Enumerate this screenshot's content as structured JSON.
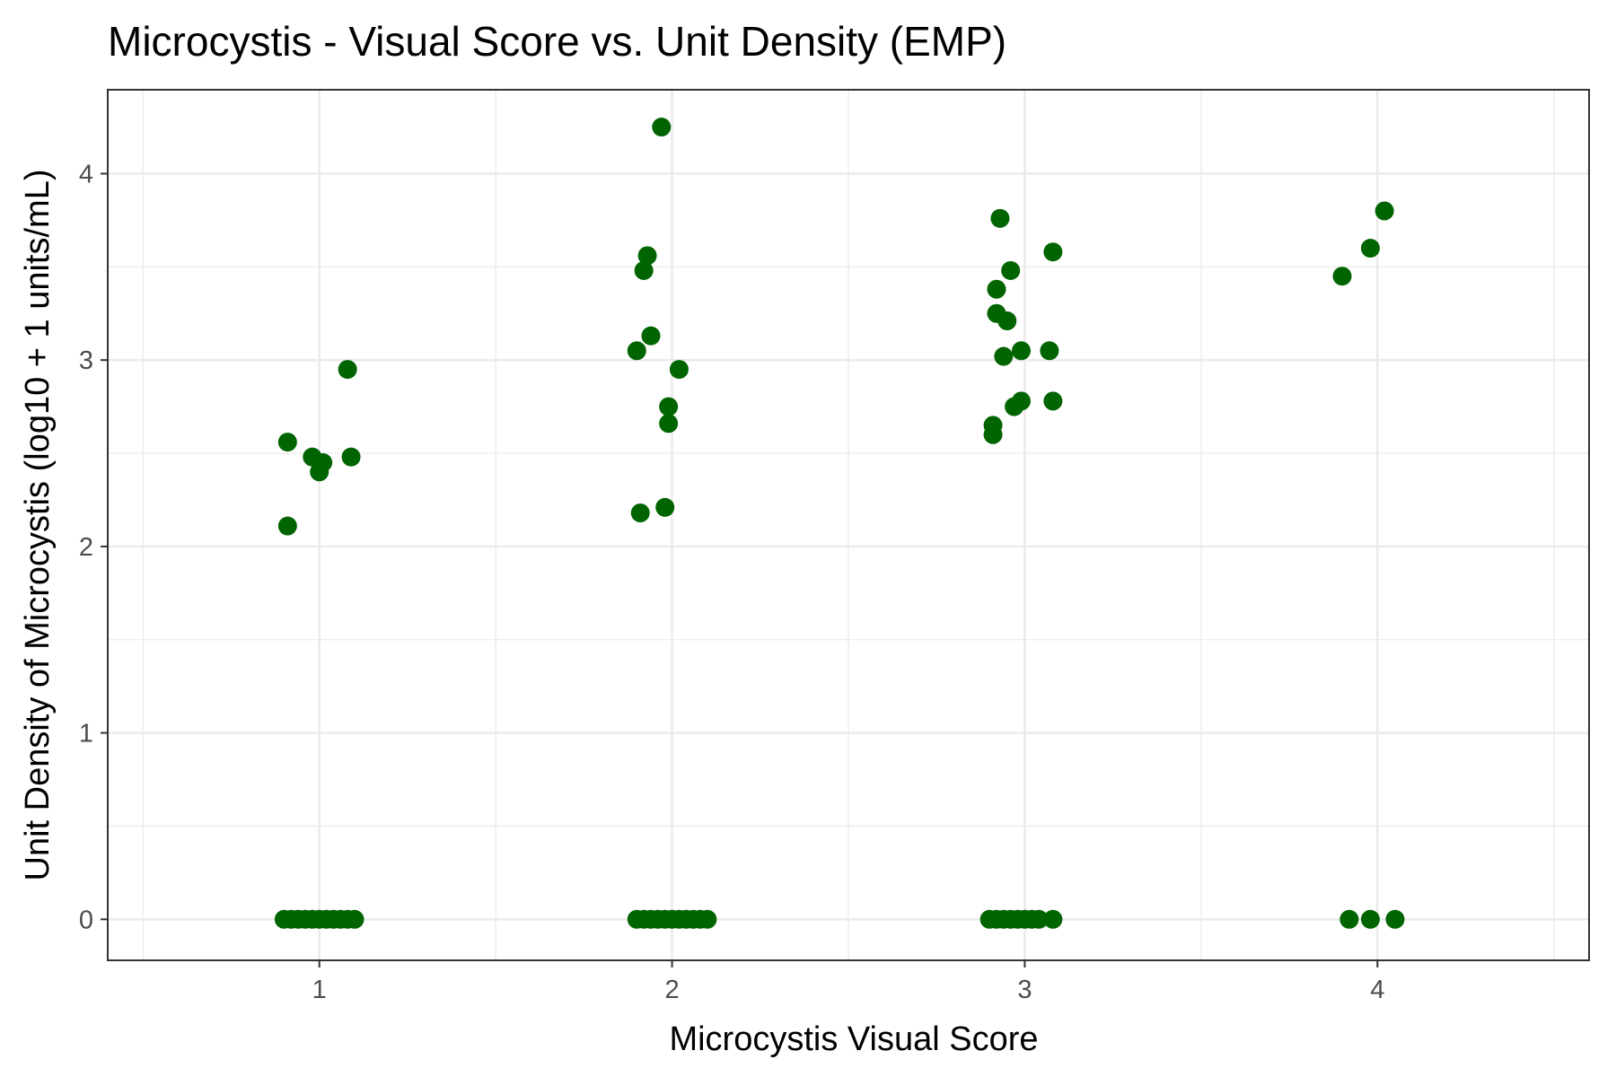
{
  "chart_data": {
    "type": "scatter",
    "title": "Microcystis - Visual Score vs. Unit Density (EMP)",
    "xlabel": "Microcystis Visual Score",
    "ylabel": "Unit Density of Microcystis (log10 + 1 units/mL)",
    "xlim": [
      0.4,
      4.6
    ],
    "ylim": [
      -0.22,
      4.45
    ],
    "x_ticks": [
      1,
      2,
      3,
      4
    ],
    "x_tick_labels": [
      "1",
      "2",
      "3",
      "4"
    ],
    "y_ticks": [
      0,
      1,
      2,
      3,
      4
    ],
    "y_tick_labels": [
      "0",
      "1",
      "2",
      "3",
      "4"
    ],
    "grid": true,
    "legend": "none",
    "point_color": "#006400",
    "series": [
      {
        "points": [
          {
            "x": 0.91,
            "y": 2.11
          },
          {
            "x": 0.91,
            "y": 2.56
          },
          {
            "x": 0.98,
            "y": 2.48
          },
          {
            "x": 1.0,
            "y": 2.4
          },
          {
            "x": 1.01,
            "y": 2.45
          },
          {
            "x": 1.09,
            "y": 2.48
          },
          {
            "x": 1.08,
            "y": 2.95
          },
          {
            "x": 0.9,
            "y": 0
          },
          {
            "x": 0.92,
            "y": 0
          },
          {
            "x": 0.94,
            "y": 0
          },
          {
            "x": 0.96,
            "y": 0
          },
          {
            "x": 0.98,
            "y": 0
          },
          {
            "x": 1.0,
            "y": 0
          },
          {
            "x": 1.02,
            "y": 0
          },
          {
            "x": 1.04,
            "y": 0
          },
          {
            "x": 1.06,
            "y": 0
          },
          {
            "x": 1.08,
            "y": 0
          },
          {
            "x": 1.1,
            "y": 0
          },
          {
            "x": 1.97,
            "y": 4.25
          },
          {
            "x": 1.93,
            "y": 3.56
          },
          {
            "x": 1.92,
            "y": 3.48
          },
          {
            "x": 1.94,
            "y": 3.13
          },
          {
            "x": 1.9,
            "y": 3.05
          },
          {
            "x": 2.02,
            "y": 2.95
          },
          {
            "x": 1.99,
            "y": 2.75
          },
          {
            "x": 1.99,
            "y": 2.66
          },
          {
            "x": 1.98,
            "y": 2.21
          },
          {
            "x": 1.91,
            "y": 2.18
          },
          {
            "x": 1.9,
            "y": 0
          },
          {
            "x": 1.92,
            "y": 0
          },
          {
            "x": 1.94,
            "y": 0
          },
          {
            "x": 1.96,
            "y": 0
          },
          {
            "x": 1.98,
            "y": 0
          },
          {
            "x": 2.0,
            "y": 0
          },
          {
            "x": 2.02,
            "y": 0
          },
          {
            "x": 2.04,
            "y": 0
          },
          {
            "x": 2.06,
            "y": 0
          },
          {
            "x": 2.08,
            "y": 0
          },
          {
            "x": 2.1,
            "y": 0
          },
          {
            "x": 2.93,
            "y": 3.76
          },
          {
            "x": 3.08,
            "y": 3.58
          },
          {
            "x": 2.96,
            "y": 3.48
          },
          {
            "x": 2.92,
            "y": 3.38
          },
          {
            "x": 2.92,
            "y": 3.25
          },
          {
            "x": 2.95,
            "y": 3.21
          },
          {
            "x": 2.94,
            "y": 3.02
          },
          {
            "x": 2.99,
            "y": 3.05
          },
          {
            "x": 3.07,
            "y": 3.05
          },
          {
            "x": 3.08,
            "y": 2.78
          },
          {
            "x": 2.99,
            "y": 2.78
          },
          {
            "x": 2.97,
            "y": 2.75
          },
          {
            "x": 2.91,
            "y": 2.65
          },
          {
            "x": 2.91,
            "y": 2.6
          },
          {
            "x": 2.9,
            "y": 0
          },
          {
            "x": 2.92,
            "y": 0
          },
          {
            "x": 2.94,
            "y": 0
          },
          {
            "x": 2.96,
            "y": 0
          },
          {
            "x": 2.98,
            "y": 0
          },
          {
            "x": 3.0,
            "y": 0
          },
          {
            "x": 3.02,
            "y": 0
          },
          {
            "x": 3.04,
            "y": 0
          },
          {
            "x": 3.08,
            "y": 0
          },
          {
            "x": 4.02,
            "y": 3.8
          },
          {
            "x": 3.98,
            "y": 3.6
          },
          {
            "x": 3.9,
            "y": 3.45
          },
          {
            "x": 3.92,
            "y": 0
          },
          {
            "x": 3.98,
            "y": 0
          },
          {
            "x": 4.05,
            "y": 0
          }
        ]
      }
    ]
  }
}
